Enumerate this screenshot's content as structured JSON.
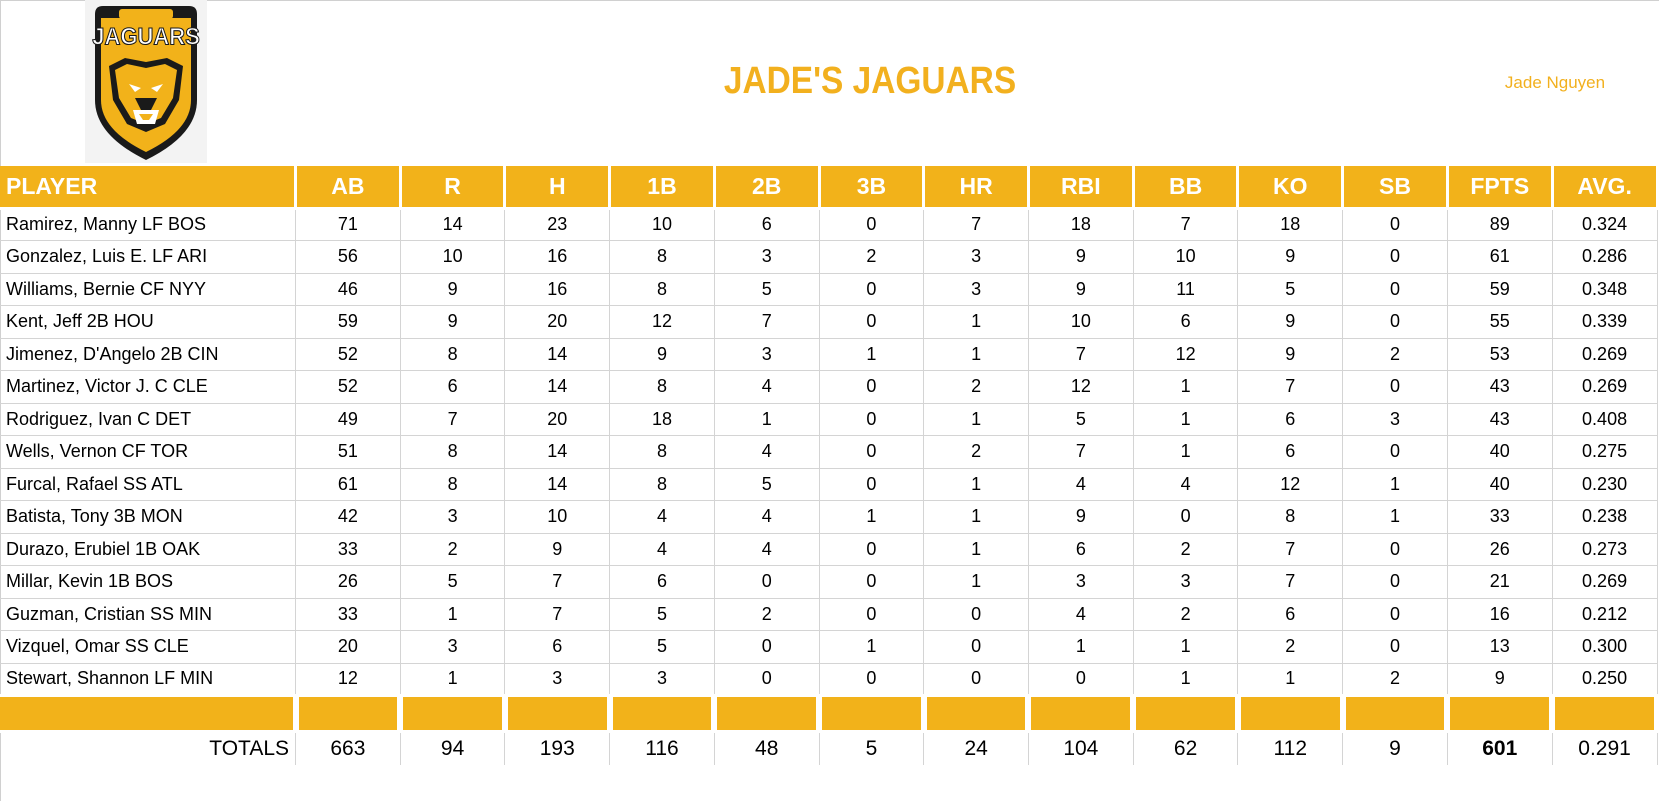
{
  "header": {
    "title": "JADE'S JAGUARS",
    "owner": "Jade Nguyen",
    "logo_text": "JAGUARS",
    "accent_color": "#f2b21a"
  },
  "table": {
    "columns": [
      "PLAYER",
      "AB",
      "R",
      "H",
      "1B",
      "2B",
      "3B",
      "HR",
      "RBI",
      "BB",
      "KO",
      "SB",
      "FPTS",
      "AVG."
    ],
    "rows": [
      [
        "Ramirez, Manny LF BOS",
        "71",
        "14",
        "23",
        "10",
        "6",
        "0",
        "7",
        "18",
        "7",
        "18",
        "0",
        "89",
        "0.324"
      ],
      [
        "Gonzalez, Luis E. LF ARI",
        "56",
        "10",
        "16",
        "8",
        "3",
        "2",
        "3",
        "9",
        "10",
        "9",
        "0",
        "61",
        "0.286"
      ],
      [
        "Williams, Bernie CF NYY",
        "46",
        "9",
        "16",
        "8",
        "5",
        "0",
        "3",
        "9",
        "11",
        "5",
        "0",
        "59",
        "0.348"
      ],
      [
        "Kent, Jeff 2B HOU",
        "59",
        "9",
        "20",
        "12",
        "7",
        "0",
        "1",
        "10",
        "6",
        "9",
        "0",
        "55",
        "0.339"
      ],
      [
        "Jimenez, D'Angelo 2B CIN",
        "52",
        "8",
        "14",
        "9",
        "3",
        "1",
        "1",
        "7",
        "12",
        "9",
        "2",
        "53",
        "0.269"
      ],
      [
        "Martinez, Victor J. C CLE",
        "52",
        "6",
        "14",
        "8",
        "4",
        "0",
        "2",
        "12",
        "1",
        "7",
        "0",
        "43",
        "0.269"
      ],
      [
        "Rodriguez, Ivan C DET",
        "49",
        "7",
        "20",
        "18",
        "1",
        "0",
        "1",
        "5",
        "1",
        "6",
        "3",
        "43",
        "0.408"
      ],
      [
        "Wells, Vernon CF TOR",
        "51",
        "8",
        "14",
        "8",
        "4",
        "0",
        "2",
        "7",
        "1",
        "6",
        "0",
        "40",
        "0.275"
      ],
      [
        "Furcal, Rafael SS ATL",
        "61",
        "8",
        "14",
        "8",
        "5",
        "0",
        "1",
        "4",
        "4",
        "12",
        "1",
        "40",
        "0.230"
      ],
      [
        "Batista, Tony 3B MON",
        "42",
        "3",
        "10",
        "4",
        "4",
        "1",
        "1",
        "9",
        "0",
        "8",
        "1",
        "33",
        "0.238"
      ],
      [
        "Durazo, Erubiel 1B OAK",
        "33",
        "2",
        "9",
        "4",
        "4",
        "0",
        "1",
        "6",
        "2",
        "7",
        "0",
        "26",
        "0.273"
      ],
      [
        "Millar, Kevin 1B BOS",
        "26",
        "5",
        "7",
        "6",
        "0",
        "0",
        "1",
        "3",
        "3",
        "7",
        "0",
        "21",
        "0.269"
      ],
      [
        "Guzman, Cristian SS MIN",
        "33",
        "1",
        "7",
        "5",
        "2",
        "0",
        "0",
        "4",
        "2",
        "6",
        "0",
        "16",
        "0.212"
      ],
      [
        "Vizquel, Omar SS CLE",
        "20",
        "3",
        "6",
        "5",
        "0",
        "1",
        "0",
        "1",
        "1",
        "2",
        "0",
        "13",
        "0.300"
      ],
      [
        "Stewart, Shannon LF MIN",
        "12",
        "1",
        "3",
        "3",
        "0",
        "0",
        "0",
        "0",
        "1",
        "1",
        "2",
        "9",
        "0.250"
      ]
    ],
    "totals": [
      "TOTALS",
      "663",
      "94",
      "193",
      "116",
      "48",
      "5",
      "24",
      "104",
      "62",
      "112",
      "9",
      "601",
      "0.291"
    ]
  }
}
